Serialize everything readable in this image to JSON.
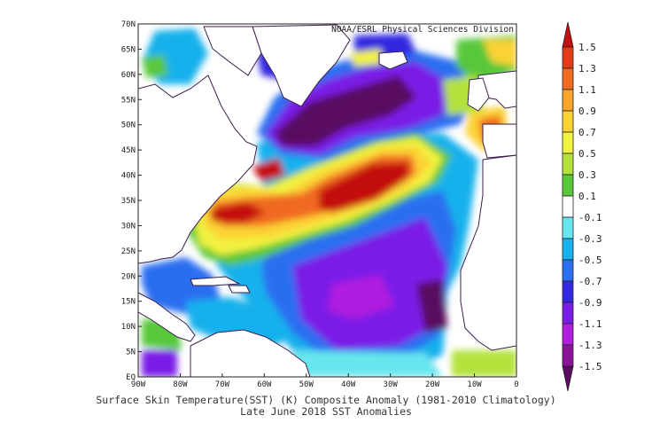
{
  "credit": "NOAA/ESRL Physical Sciences Division",
  "caption_line1": "Surface Skin Temperature(SST) (K) Composite Anomaly (1981-2010 Climatology)",
  "caption_line2": "Late June 2018 SST Anomalies",
  "lat_labels": [
    "EQ",
    "5N",
    "10N",
    "15N",
    "20N",
    "25N",
    "30N",
    "35N",
    "40N",
    "45N",
    "50N",
    "55N",
    "60N",
    "65N",
    "70N"
  ],
  "lon_labels": [
    "90W",
    "80W",
    "70W",
    "60W",
    "50W",
    "40W",
    "30W",
    "20W",
    "10W",
    "0"
  ],
  "colorbar": {
    "labels": [
      "1.5",
      "1.3",
      "1.1",
      "0.9",
      "0.7",
      "0.5",
      "0.3",
      "0.1",
      "-0.1",
      "-0.3",
      "-0.5",
      "-0.7",
      "-0.9",
      "-1.1",
      "-1.3",
      "-1.5"
    ],
    "colors": [
      "#c41010",
      "#e33a1a",
      "#f06a22",
      "#f8a52c",
      "#fbd236",
      "#f2f240",
      "#b3e23c",
      "#58c73a",
      "#ffffff",
      "#68e6ee",
      "#19b1ec",
      "#2b6ef0",
      "#3228e0",
      "#7a1ee6",
      "#b01ee0",
      "#8a1498",
      "#5a0a60"
    ]
  }
}
